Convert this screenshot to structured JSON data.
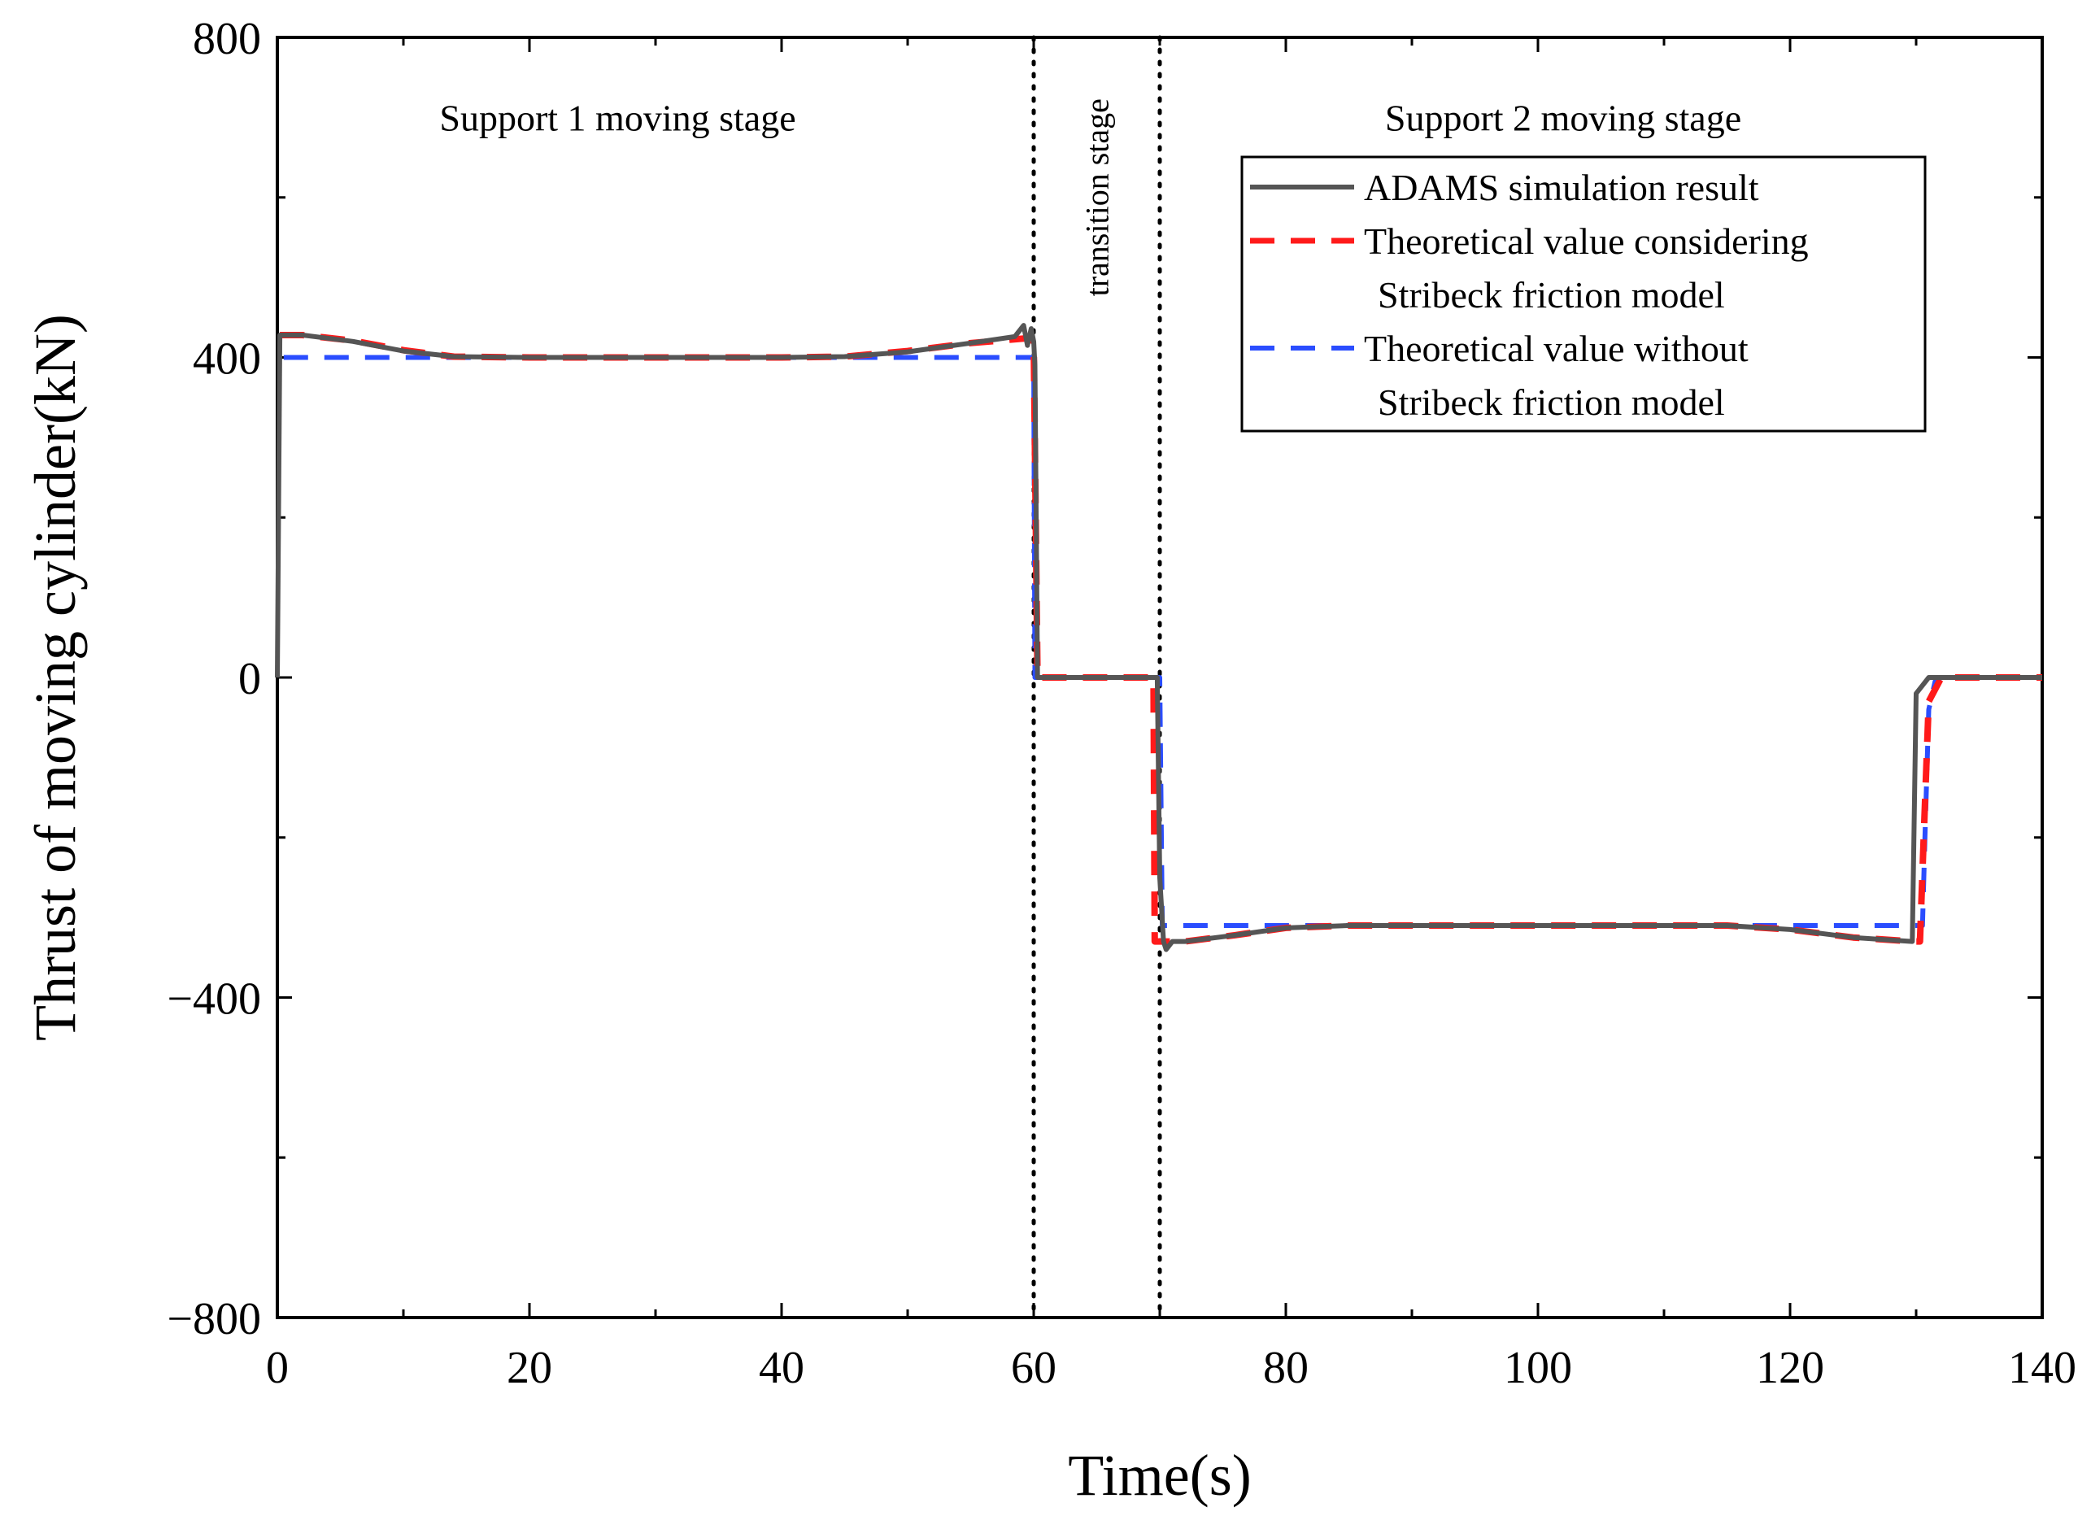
{
  "chart_data": {
    "type": "line",
    "xlabel": "Time(s)",
    "ylabel": "Thrust of moving cylinder(kN)",
    "xlim": [
      0,
      140
    ],
    "ylim": [
      -800,
      800
    ],
    "xticks": [
      0,
      20,
      40,
      60,
      80,
      100,
      120,
      140
    ],
    "yticks": [
      -800,
      -400,
      0,
      400,
      800
    ],
    "ytick_labels": [
      "−800",
      "−400",
      "0",
      "400",
      "800"
    ],
    "grid": false,
    "legend_position": "top-right",
    "stage_dividers": [
      60,
      70
    ],
    "annotations": [
      {
        "id": "support1",
        "text": "Support 1 moving stage",
        "x": 27,
        "y": 700,
        "rotation": 0
      },
      {
        "id": "transition",
        "text": "transition stage",
        "x": 65,
        "y": 600,
        "rotation": -90
      },
      {
        "id": "support2",
        "text": "Support 2 moving stage",
        "x": 102,
        "y": 700,
        "rotation": 0
      }
    ],
    "series": [
      {
        "name": "ADAMS simulation result",
        "legend_lines": [
          "ADAMS simulation result"
        ],
        "color": "#555555",
        "style": "solid",
        "points": [
          [
            0,
            0
          ],
          [
            0.2,
            428
          ],
          [
            2,
            428
          ],
          [
            6,
            420
          ],
          [
            10,
            408
          ],
          [
            14,
            401
          ],
          [
            20,
            400
          ],
          [
            30,
            400
          ],
          [
            40,
            400
          ],
          [
            45,
            401
          ],
          [
            50,
            407
          ],
          [
            55,
            418
          ],
          [
            58.5,
            426
          ],
          [
            59.2,
            440
          ],
          [
            59.5,
            415
          ],
          [
            59.8,
            436
          ],
          [
            60,
            420
          ],
          [
            60.1,
            390
          ],
          [
            60.3,
            0
          ],
          [
            65,
            0
          ],
          [
            69.8,
            0
          ],
          [
            70,
            -250
          ],
          [
            70.3,
            -330
          ],
          [
            70.5,
            -340
          ],
          [
            71,
            -330
          ],
          [
            72,
            -330
          ],
          [
            76,
            -322
          ],
          [
            80,
            -313
          ],
          [
            85,
            -310
          ],
          [
            100,
            -310
          ],
          [
            115,
            -310
          ],
          [
            120,
            -315
          ],
          [
            125,
            -325
          ],
          [
            129.7,
            -330
          ],
          [
            130,
            -20
          ],
          [
            130.5,
            -10
          ],
          [
            131,
            0
          ],
          [
            135,
            0
          ],
          [
            140,
            0
          ]
        ]
      },
      {
        "name": "Theoretical value considering Stribeck friction model",
        "legend_lines": [
          "Theoretical value considering",
          "Stribeck friction model"
        ],
        "color": "#ff1a1a",
        "style": "dashed",
        "points": [
          [
            0.2,
            428
          ],
          [
            2,
            428
          ],
          [
            6,
            421
          ],
          [
            10,
            409
          ],
          [
            14,
            401
          ],
          [
            20,
            400
          ],
          [
            30,
            400
          ],
          [
            40,
            400
          ],
          [
            45,
            401
          ],
          [
            50,
            408
          ],
          [
            55,
            418
          ],
          [
            59.5,
            424
          ],
          [
            60,
            420
          ],
          [
            60.3,
            0
          ],
          [
            65,
            0
          ],
          [
            69.5,
            0
          ],
          [
            69.6,
            -330
          ],
          [
            70.5,
            -330
          ],
          [
            72,
            -330
          ],
          [
            76,
            -322
          ],
          [
            80,
            -313
          ],
          [
            85,
            -310
          ],
          [
            100,
            -310
          ],
          [
            115,
            -310
          ],
          [
            120,
            -315
          ],
          [
            125,
            -325
          ],
          [
            129.8,
            -330
          ],
          [
            130.3,
            -330
          ],
          [
            130.6,
            -200
          ],
          [
            131,
            -30
          ],
          [
            132,
            0
          ],
          [
            135,
            0
          ],
          [
            140,
            0
          ]
        ]
      },
      {
        "name": "Theoretical value without Stribeck friction model",
        "legend_lines": [
          "Theoretical value without",
          "Stribeck friction model"
        ],
        "color": "#2a4dff",
        "style": "dashed",
        "points": [
          [
            0.5,
            400
          ],
          [
            20,
            400
          ],
          [
            40,
            400
          ],
          [
            60,
            400
          ],
          [
            60.1,
            0
          ],
          [
            65,
            0
          ],
          [
            70,
            0
          ],
          [
            70.2,
            -310
          ],
          [
            80,
            -310
          ],
          [
            100,
            -310
          ],
          [
            120,
            -310
          ],
          [
            130.5,
            -310
          ],
          [
            130.7,
            -200
          ],
          [
            131,
            -40
          ],
          [
            131.5,
            -5
          ],
          [
            132,
            0
          ],
          [
            140,
            0
          ]
        ]
      }
    ]
  }
}
